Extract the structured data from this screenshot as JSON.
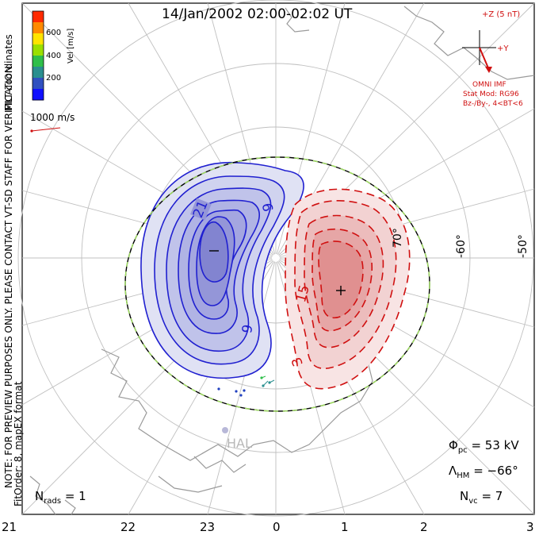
{
  "title": "14/Jan/2002 02:00-02:02 UT",
  "colorbar": {
    "label": "Vel [m/s]",
    "ticks": [
      "600",
      "400",
      "200"
    ],
    "colors": [
      "#ff2a00",
      "#ff8a00",
      "#ffe400",
      "#9be000",
      "#2fbf4a",
      "#2a8f8f",
      "#3050c0",
      "#1010ff"
    ]
  },
  "coord_label": "MLT coordinates",
  "vector_scale": "1000 m/s",
  "side_note": "NOTE: FOR PREVIEW PURPOSES ONLY. PLEASE CONTACT VT-SD STAFF FOR VERIFICATION.",
  "fit_label": "FitOrder: 8, mapEX format",
  "imf": {
    "z_label": "+Z (5 nT)",
    "y_label": "+Y",
    "source": "OMNI IMF",
    "model": "Stat Mod: RG96",
    "condition": "Bz-/By-, 4<BT<6"
  },
  "lat_labels": [
    "70°",
    "-60°",
    "-50°"
  ],
  "contour_labels": [
    "21",
    "9",
    "9",
    "15",
    "3"
  ],
  "extremes": {
    "min": "–",
    "max": "+"
  },
  "station": "HAL",
  "stats": {
    "phi_pc": "= 53 kV",
    "lambda_hm": "= −66°",
    "n_vc": "= 7",
    "n_rads": "= 1"
  },
  "mlt_ticks": [
    "21",
    "22",
    "23",
    "0",
    "1",
    "2",
    "3"
  ],
  "colors": {
    "neg": "#2020d0",
    "pos": "#d01010",
    "hmb": "#a0e060",
    "grid": "#bbbbbb",
    "land": "#9a9a9a"
  }
}
